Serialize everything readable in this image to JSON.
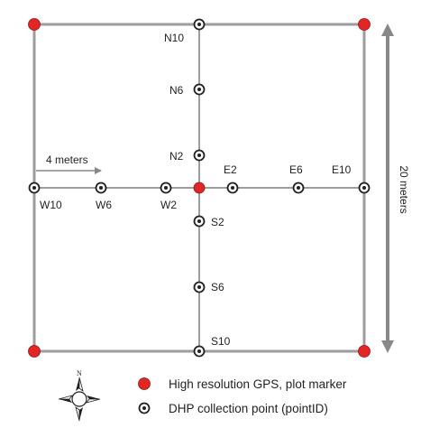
{
  "labels": {
    "n10": "N10",
    "n6": "N6",
    "n2": "N2",
    "e2": "E2",
    "e6": "E6",
    "e10": "E10",
    "s2": "S2",
    "s6": "S6",
    "s10": "S10",
    "w10": "W10",
    "w6": "W6",
    "w2": "W2"
  },
  "scale_label": "4 meters",
  "side_label": "20 meters",
  "legend": {
    "gps": "High resolution GPS, plot marker",
    "dhp": "DHP collection point (pointID)"
  },
  "compass_letter": "N",
  "colors": {
    "gps_marker": "#e42525",
    "line": "#9d9d9d",
    "text": "#231f20",
    "arrow": "#888888"
  }
}
